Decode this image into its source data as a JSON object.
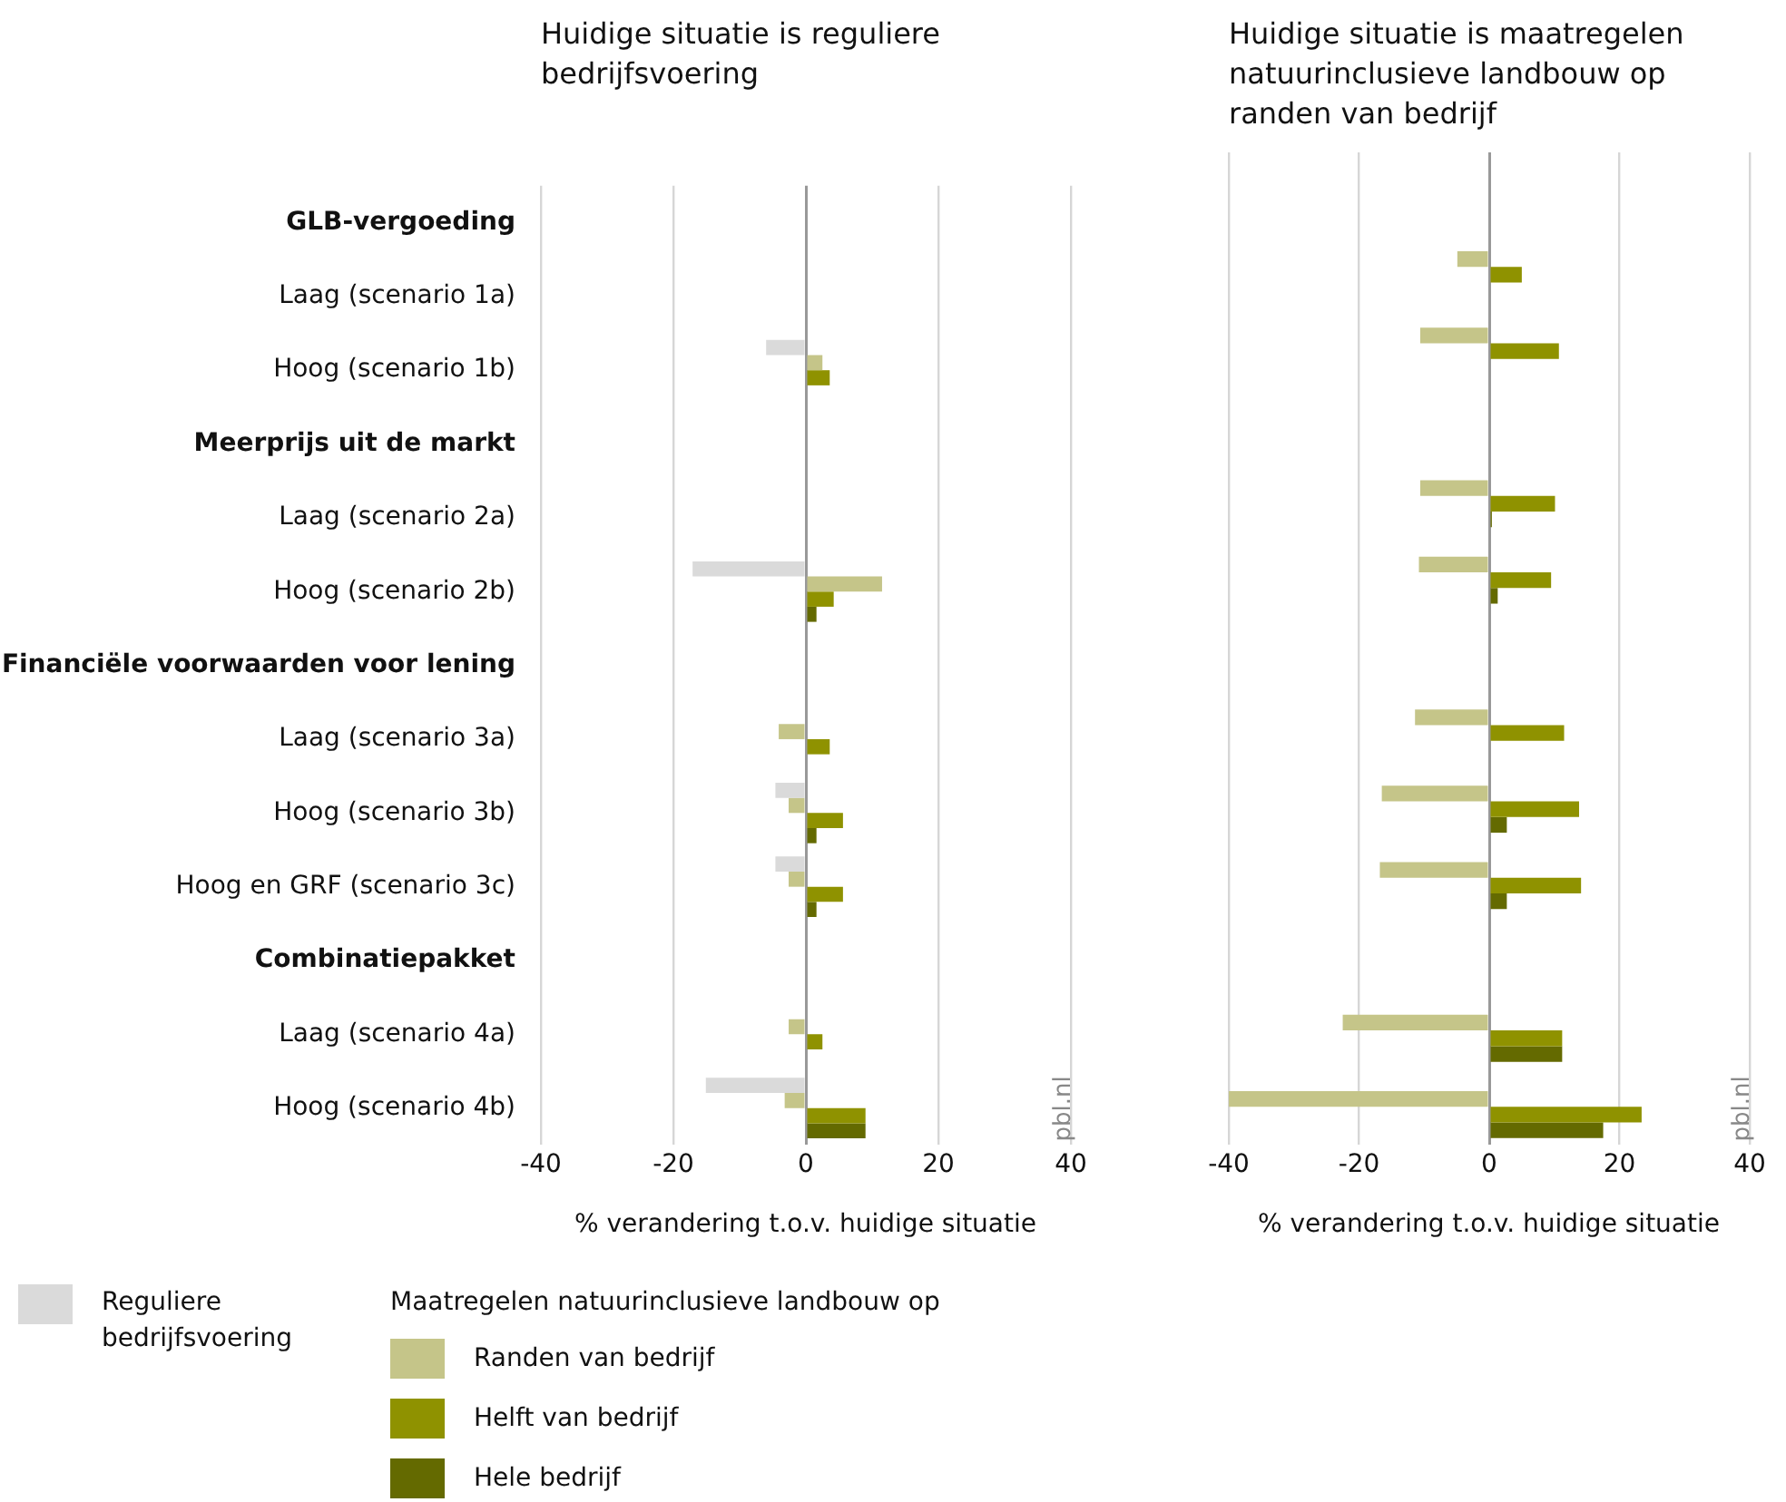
{
  "chart_data": [
    {
      "type": "bar",
      "orientation": "horizontal",
      "title": "Huidige situatie is reguliere bedrijfsvoering",
      "xlabel": "% verandering t.o.v. huidige situatie",
      "categories": [
        "GLB-vergoeding",
        "Laag (scenario 1a)",
        "Hoog (scenario 1b)",
        "Meerprijs uit de markt",
        "Laag (scenario 2a)",
        "Hoog (scenario 2b)",
        "Financiële voorwaarden voor lening",
        "Laag (scenario 3a)",
        "Hoog (scenario 3b)",
        "Hoog en GRF (scenario 3c)",
        "Combinatiepakket",
        "Laag (scenario 4a)",
        "Hoog (scenario 4b)"
      ],
      "series": [
        {
          "name": "Reguliere bedrijfsvoering",
          "color": "#dadada",
          "values": [
            null,
            null,
            -6.0,
            null,
            null,
            -17.1,
            null,
            null,
            -4.6,
            -4.6,
            null,
            null,
            -15.1
          ]
        },
        {
          "name": "Randen van bedrijf",
          "color": "#c5c589",
          "values": [
            null,
            null,
            2.5,
            null,
            null,
            11.5,
            null,
            -4.1,
            -2.6,
            -2.6,
            null,
            -2.6,
            -3.2
          ]
        },
        {
          "name": "Helft van bedrijf",
          "color": "#8f9200",
          "values": [
            null,
            null,
            3.6,
            null,
            null,
            4.2,
            null,
            3.6,
            5.6,
            5.6,
            null,
            2.5,
            9.0
          ]
        },
        {
          "name": "Hele bedrijf",
          "color": "#646a00",
          "values": [
            null,
            null,
            null,
            null,
            null,
            1.6,
            null,
            null,
            1.6,
            1.6,
            null,
            null,
            9.0
          ]
        }
      ],
      "xlim": [
        -40,
        40
      ],
      "xticks": [
        -40,
        -20,
        0,
        20,
        40
      ],
      "grid": "x",
      "legend": "bottom",
      "legend_title": "Maatregelen natuurinclusieve landbouw op",
      "annotations": [
        "pbl.nl"
      ]
    },
    {
      "type": "bar",
      "orientation": "horizontal",
      "title": "Huidige situatie is maatregelen natuurinclusieve landbouw op randen van bedrijf",
      "xlabel": "% verandering t.o.v. huidige situatie",
      "categories": [
        null,
        null,
        null,
        null,
        null,
        null,
        null,
        null,
        null,
        null,
        null,
        null,
        null
      ],
      "series": [
        {
          "color": "#dadada",
          "values": [
            null,
            null,
            null,
            null,
            null,
            null,
            null,
            null,
            null,
            null,
            null,
            null,
            null
          ]
        },
        {
          "color": "#c5c589",
          "values": [
            null,
            -4.9,
            -10.6,
            null,
            -10.6,
            -10.8,
            null,
            -11.4,
            -16.5,
            -16.8,
            null,
            -22.5,
            -40
          ]
        },
        {
          "color": "#8f9200",
          "values": [
            null,
            5.0,
            10.7,
            null,
            10.1,
            9.5,
            null,
            11.5,
            13.8,
            14.1,
            null,
            11.2,
            23.4
          ]
        },
        {
          "color": "#646a00",
          "values": [
            null,
            null,
            null,
            null,
            0.4,
            1.3,
            null,
            null,
            2.7,
            2.7,
            null,
            11.2,
            17.5
          ]
        }
      ],
      "xlim": [
        -40,
        40
      ],
      "xticks": [
        -40,
        -20,
        0,
        20,
        40
      ],
      "grid": "x",
      "tick_labels": "x",
      "legend": false,
      "annotations": [
        "pbl.nl"
      ]
    }
  ]
}
